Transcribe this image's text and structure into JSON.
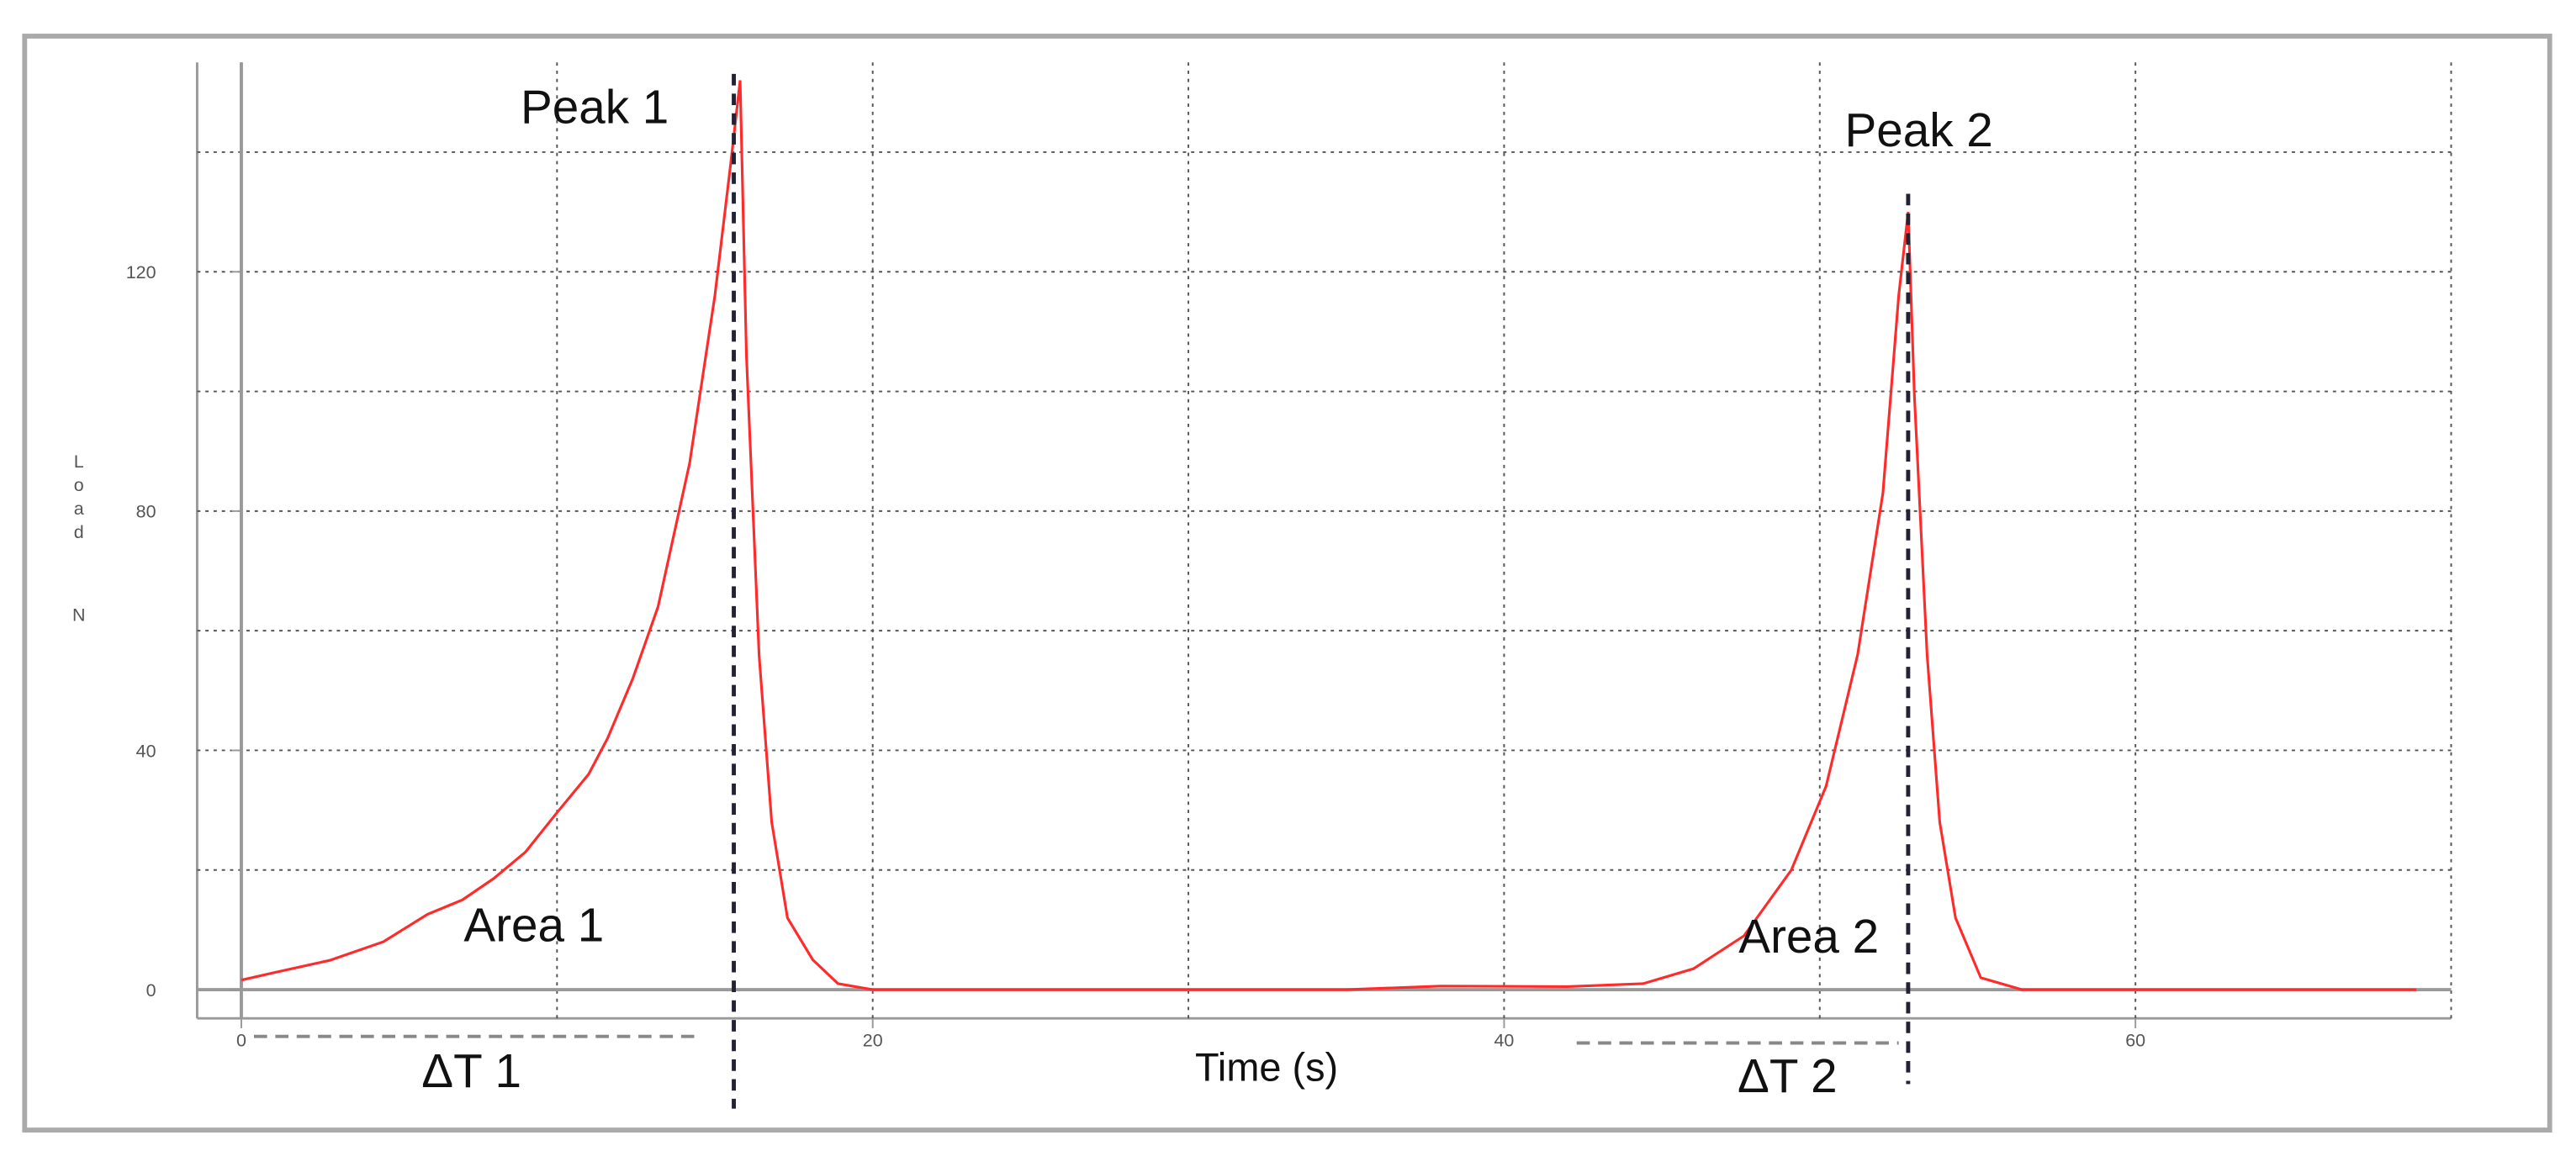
{
  "chart_data": {
    "type": "line",
    "xlabel": "Time (s)",
    "ylabel": "Load",
    "yunit": "N",
    "x": [
      0,
      1,
      2.8,
      4.5,
      5.9,
      7,
      8,
      9,
      10,
      11,
      11.6,
      12.4,
      13.2,
      14.2,
      15,
      15.5,
      15.8,
      16,
      16.4,
      16.8,
      17.3,
      18.1,
      18.9,
      20,
      25,
      30,
      35,
      38,
      42,
      44.4,
      46,
      47.6,
      49.1,
      50.2,
      51.2,
      52,
      52.5,
      52.8,
      53,
      53.4,
      53.8,
      54.3,
      55.1,
      56.4,
      60,
      65,
      68.9
    ],
    "values": [
      1.6,
      2.8,
      4.9,
      8,
      12.6,
      15,
      18.6,
      23,
      29.6,
      36,
      42,
      52,
      64,
      88,
      116,
      138,
      152,
      106,
      56,
      28,
      12,
      5,
      1,
      0,
      0,
      0,
      0,
      0.6,
      0.5,
      1,
      3.5,
      9,
      20,
      34,
      56,
      83,
      116,
      130,
      99,
      56,
      28,
      12,
      2,
      0,
      0,
      0,
      0
    ],
    "color": "#ff2a2a",
    "xlim": [
      -1.4,
      70
    ],
    "ylim": [
      -4.8,
      155
    ],
    "xticks": [
      0,
      20,
      40,
      60
    ],
    "yticks": [
      0,
      40,
      80,
      120
    ],
    "xgrid": [
      0,
      10,
      20,
      30,
      40,
      50,
      60,
      70
    ],
    "ygrid": [
      0,
      20,
      40,
      60,
      80,
      100,
      120,
      140
    ],
    "grid": true,
    "markers": [
      {
        "label": "Peak 1",
        "x": 15.6
      },
      {
        "label": "Peak 2",
        "x": 52.8
      }
    ],
    "intervals": [
      {
        "label": "ΔT 1",
        "start": 0.4,
        "end": 14.5
      },
      {
        "label": "ΔT 2",
        "start": 42.3,
        "end": 52.5
      }
    ],
    "annotations": [
      "Area 1",
      "Area 2"
    ]
  }
}
